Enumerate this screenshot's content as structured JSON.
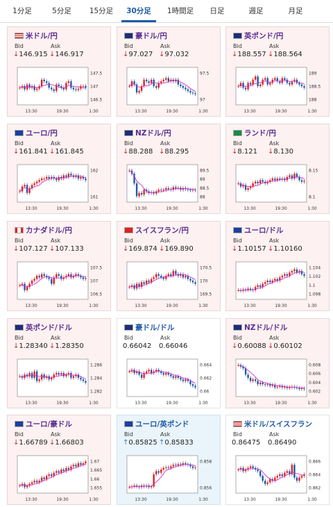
{
  "tabs": [
    "1分足",
    "5分足",
    "15分足",
    "30分足",
    "1時間足",
    "日足",
    "週足",
    "月足"
  ],
  "active_tab": "30分足",
  "labels": {
    "bid": "Bid",
    "ask": "Ask"
  },
  "colors": {
    "accent": "#1f5aa6",
    "down": "#c8282c",
    "up": "#2a78c8",
    "candle_up": "#e02020",
    "candle_down": "#1f5aa6",
    "ma": "#cc33cc"
  },
  "cards": [
    {
      "pair": "米ドル/円",
      "flag": "us",
      "bid": "146.915",
      "ask": "146.917",
      "dir": "down",
      "ticks": [
        "147.5",
        "147",
        "146.5"
      ],
      "x": [
        "13:30",
        "19:30",
        "1:30"
      ],
      "trend": [
        0.55,
        0.5,
        0.6,
        0.45,
        0.55,
        0.5,
        0.62,
        0.58,
        0.5,
        0.3,
        0.35,
        0.4,
        0.55,
        0.6,
        0.65,
        0.45,
        0.5,
        0.55,
        0.6,
        0.4,
        0.35,
        0.55,
        0.6,
        0.62,
        0.58,
        0.5,
        0.5,
        0.55
      ]
    },
    {
      "pair": "豪ドル/円",
      "flag": "au",
      "bid": "97.027",
      "ask": "97.032",
      "dir": "down",
      "ticks": [
        "97.5",
        "97"
      ],
      "x": [
        "13:30",
        "19:30",
        "1:30"
      ],
      "trend": [
        0.5,
        0.35,
        0.45,
        0.7,
        0.65,
        0.5,
        0.3,
        0.35,
        0.4,
        0.3,
        0.5,
        0.55,
        0.4,
        0.35,
        0.3,
        0.25,
        0.35,
        0.3,
        0.35,
        0.3,
        0.45,
        0.5,
        0.55,
        0.6,
        0.65,
        0.7,
        0.72,
        0.75
      ]
    },
    {
      "pair": "英ポンド/円",
      "flag": "gb",
      "bid": "188.557",
      "ask": "188.564",
      "dir": "down",
      "ticks": [
        "189",
        "188.5",
        "188"
      ],
      "x": [
        "13:30",
        "19:30",
        "1:30"
      ],
      "trend": [
        0.5,
        0.4,
        0.55,
        0.6,
        0.4,
        0.45,
        0.3,
        0.2,
        0.5,
        0.45,
        0.3,
        0.25,
        0.45,
        0.4,
        0.3,
        0.25,
        0.35,
        0.4,
        0.25,
        0.3,
        0.4,
        0.45,
        0.35,
        0.3,
        0.4,
        0.45,
        0.5,
        0.55
      ]
    },
    {
      "pair": "ユーロ/円",
      "flag": "eu",
      "bid": "161.841",
      "ask": "161.845",
      "dir": "down",
      "ticks": [
        "162",
        "161"
      ],
      "x": [
        "13:30",
        "19:30",
        "1:30"
      ],
      "trend": [
        0.75,
        0.6,
        0.55,
        0.8,
        0.65,
        0.55,
        0.5,
        0.45,
        0.4,
        0.35,
        0.35,
        0.3,
        0.35,
        0.3,
        0.35,
        0.4,
        0.3,
        0.35,
        0.25,
        0.3,
        0.2,
        0.25,
        0.3,
        0.25,
        0.35,
        0.3,
        0.35,
        0.4
      ]
    },
    {
      "pair": "NZドル/円",
      "flag": "nz",
      "bid": "88.288",
      "ask": "88.295",
      "dir": "down",
      "ticks": [
        "89.5",
        "89",
        "88.5",
        "88"
      ],
      "x": [
        "13:30",
        "19:30",
        "1:30"
      ],
      "trend": [
        0.1,
        0.2,
        0.5,
        0.9,
        0.8,
        0.85,
        0.7,
        0.75,
        0.8,
        0.78,
        0.82,
        0.75,
        0.7,
        0.72,
        0.7,
        0.65,
        0.68,
        0.7,
        0.62,
        0.66,
        0.64,
        0.7,
        0.65,
        0.68,
        0.7,
        0.72,
        0.7,
        0.72
      ]
    },
    {
      "pair": "ランド/円",
      "flag": "za",
      "bid": "8.121",
      "ask": "8.130",
      "dir": "down",
      "ticks": [
        "8.15",
        "8.1"
      ],
      "x": [
        "13:30",
        "19:30",
        "1:30"
      ],
      "trend": [
        0.5,
        0.6,
        0.55,
        0.7,
        0.65,
        0.6,
        0.5,
        0.45,
        0.5,
        0.4,
        0.45,
        0.5,
        0.45,
        0.4,
        0.35,
        0.4,
        0.35,
        0.38,
        0.35,
        0.4,
        0.3,
        0.25,
        0.35,
        0.2,
        0.3,
        0.4,
        0.45,
        0.42
      ]
    },
    {
      "pair": "カナダドル/円",
      "flag": "ca",
      "bid": "107.127",
      "ask": "107.133",
      "dir": "down",
      "ticks": [
        "107.5",
        "107",
        "106.5"
      ],
      "x": [
        "13:30",
        "19:30",
        "1:30"
      ],
      "trend": [
        0.65,
        0.6,
        0.8,
        0.7,
        0.6,
        0.5,
        0.45,
        0.35,
        0.4,
        0.3,
        0.35,
        0.4,
        0.45,
        0.6,
        0.4,
        0.3,
        0.35,
        0.45,
        0.4,
        0.35,
        0.3,
        0.4,
        0.35,
        0.3,
        0.35,
        0.4,
        0.45,
        0.42
      ]
    },
    {
      "pair": "スイスフラン/円",
      "flag": "ch",
      "bid": "169.874",
      "ask": "169.890",
      "dir": "down",
      "ticks": [
        "170.5",
        "170",
        "169.5"
      ],
      "x": [
        "13:30",
        "19:30",
        "1:30"
      ],
      "trend": [
        0.7,
        0.65,
        0.75,
        0.6,
        0.7,
        0.55,
        0.6,
        0.5,
        0.55,
        0.45,
        0.4,
        0.3,
        0.35,
        0.4,
        0.45,
        0.35,
        0.3,
        0.35,
        0.2,
        0.3,
        0.35,
        0.3,
        0.4,
        0.35,
        0.45,
        0.5,
        0.55,
        0.6
      ]
    },
    {
      "pair": "ユーロ/ドル",
      "flag": "euus",
      "bid": "1.10157",
      "ask": "1.10160",
      "dir": "down",
      "ticks": [
        "1.104",
        "1.102",
        "1.1",
        "1.098"
      ],
      "x": [
        "13:30",
        "19:30",
        "1:30"
      ],
      "trend": [
        0.8,
        0.82,
        0.78,
        0.8,
        0.75,
        0.78,
        0.8,
        0.7,
        0.65,
        0.7,
        0.6,
        0.55,
        0.5,
        0.55,
        0.5,
        0.45,
        0.5,
        0.4,
        0.35,
        0.3,
        0.35,
        0.25,
        0.2,
        0.15,
        0.25,
        0.2,
        0.3,
        0.35
      ]
    },
    {
      "pair": "英ポンド/ドル",
      "flag": "gbus",
      "bid": "1.28340",
      "ask": "1.28350",
      "dir": "down",
      "ticks": [
        "1.286",
        "1.284",
        "1.282"
      ],
      "x": [
        "13:30",
        "19:30",
        "1:30"
      ],
      "trend": [
        0.45,
        0.5,
        0.4,
        0.45,
        0.35,
        0.5,
        0.3,
        0.6,
        0.55,
        0.4,
        0.5,
        0.45,
        0.55,
        0.5,
        0.4,
        0.35,
        0.4,
        0.35,
        0.45,
        0.4,
        0.35,
        0.5,
        0.45,
        0.4,
        0.5,
        0.55,
        0.6,
        0.65
      ]
    },
    {
      "pair": "豪ドル/ドル",
      "flag": "auus",
      "bid": "0.66042",
      "ask": "0.66046",
      "dir": "none",
      "ticks": [
        "0.664",
        "0.662",
        "0.66"
      ],
      "x": [
        "13:30",
        "19:30",
        "1:30"
      ],
      "trend": [
        0.3,
        0.25,
        0.35,
        0.3,
        0.4,
        0.5,
        0.35,
        0.3,
        0.25,
        0.35,
        0.3,
        0.25,
        0.3,
        0.35,
        0.4,
        0.35,
        0.4,
        0.45,
        0.5,
        0.45,
        0.5,
        0.55,
        0.6,
        0.55,
        0.6,
        0.7,
        0.75,
        0.8
      ]
    },
    {
      "pair": "NZドル/ドル",
      "flag": "nzus",
      "bid": "0.60088",
      "ask": "0.60102",
      "dir": "down",
      "ticks": [
        "0.608",
        "0.606",
        "0.604",
        "0.602"
      ],
      "x": [
        "13:30",
        "19:30",
        "1:30"
      ],
      "trend": [
        0.1,
        0.15,
        0.2,
        0.4,
        0.5,
        0.6,
        0.55,
        0.6,
        0.7,
        0.65,
        0.7,
        0.72,
        0.7,
        0.75,
        0.72,
        0.8,
        0.78,
        0.75,
        0.8,
        0.78,
        0.82,
        0.8,
        0.78,
        0.8,
        0.82,
        0.85,
        0.83,
        0.85
      ]
    },
    {
      "pair": "ユーロ/豪ドル",
      "flag": "euau",
      "bid": "1.66789",
      "ask": "1.66803",
      "dir": "down",
      "ticks": [
        "1.67",
        "1.665",
        "1.66",
        "1.655"
      ],
      "x": [
        "13:30",
        "19:30",
        "1:30"
      ],
      "trend": [
        0.85,
        0.8,
        0.9,
        0.85,
        0.8,
        0.75,
        0.7,
        0.75,
        0.7,
        0.6,
        0.65,
        0.55,
        0.5,
        0.55,
        0.45,
        0.4,
        0.45,
        0.35,
        0.4,
        0.3,
        0.35,
        0.25,
        0.2,
        0.25,
        0.15,
        0.2,
        0.15,
        0.1
      ]
    },
    {
      "pair": "ユーロ/英ポンド",
      "flag": "eugb",
      "bid": "0.85825",
      "ask": "0.85833",
      "dir": "up",
      "ticks": [
        "0.858",
        "0.856"
      ],
      "x": [
        "13:30",
        "19:30",
        "1:30"
      ],
      "trend": [
        0.9,
        0.88,
        0.85,
        0.88,
        0.9,
        0.85,
        0.88,
        0.85,
        0.9,
        0.88,
        0.5,
        0.4,
        0.45,
        0.35,
        0.3,
        0.28,
        0.3,
        0.25,
        0.2,
        0.22,
        0.18,
        0.2,
        0.15,
        0.18,
        0.2,
        0.25,
        0.3,
        0.28
      ]
    },
    {
      "pair": "米ドル/スイスフラン",
      "flag": "usch",
      "bid": "0.86475",
      "ask": "0.86490",
      "dir": "none",
      "ticks": [
        "0.866",
        "0.864",
        "0.862"
      ],
      "x": [
        "13:30",
        "19:30",
        "1:30"
      ],
      "trend": [
        0.35,
        0.3,
        0.4,
        0.35,
        0.3,
        0.25,
        0.3,
        0.35,
        0.4,
        0.55,
        0.7,
        0.8,
        0.75,
        0.65,
        0.7,
        0.6,
        0.55,
        0.5,
        0.55,
        0.45,
        0.4,
        0.5,
        0.2,
        0.6,
        0.7,
        0.6,
        0.55,
        0.5
      ]
    }
  ]
}
